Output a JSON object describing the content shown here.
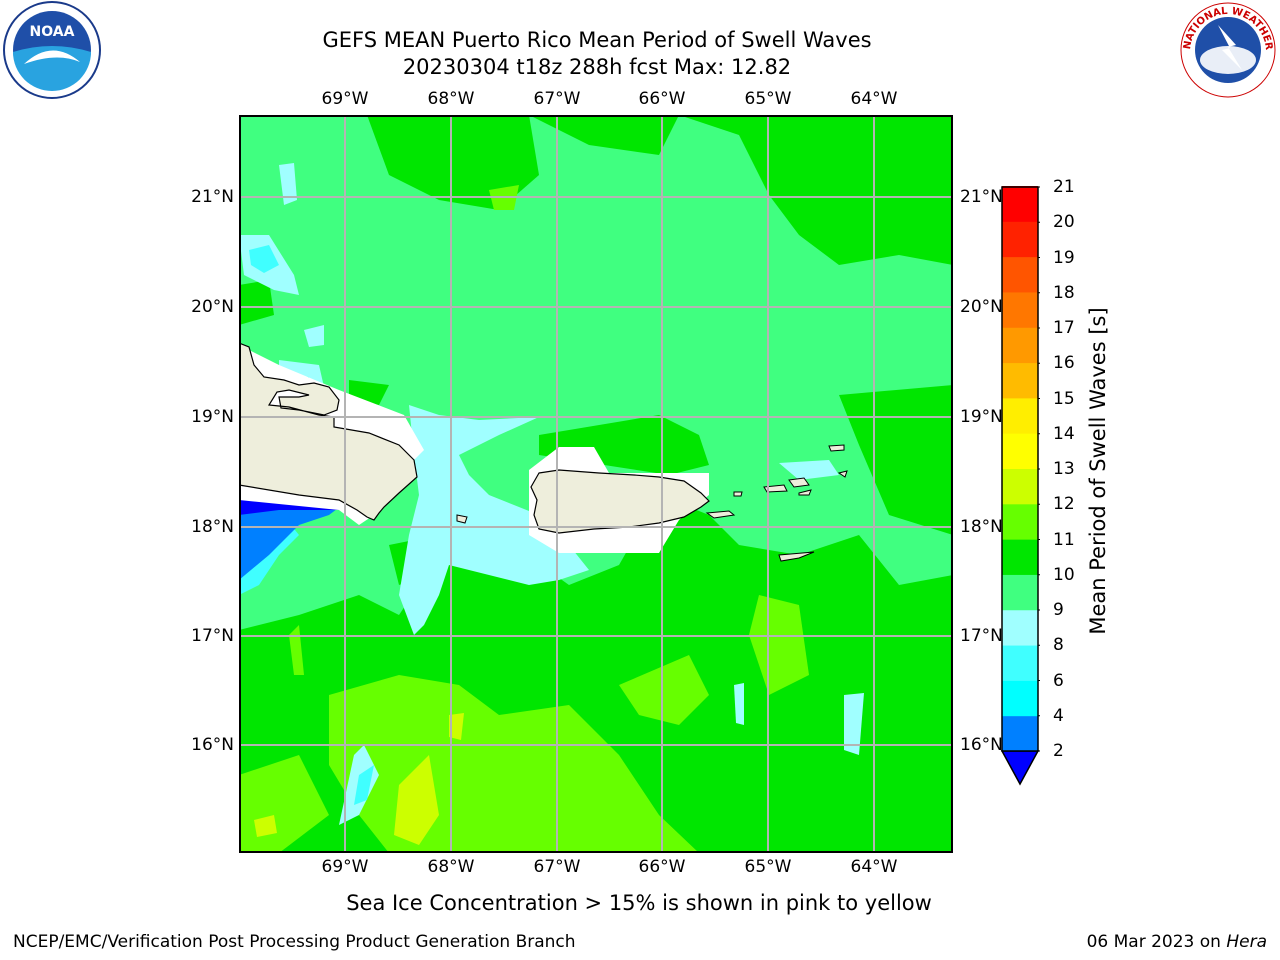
{
  "header": {
    "title_line1": "GEFS MEAN Puerto Rico Mean Period of Swell Waves",
    "title_line2": "20230304 t18z 288h fcst   Max: 12.82"
  },
  "axes": {
    "lon_labels": [
      "69°W",
      "68°W",
      "67°W",
      "66°W",
      "65°W",
      "64°W"
    ],
    "lat_labels": [
      "21°N",
      "20°N",
      "19°N",
      "18°N",
      "17°N",
      "16°N"
    ],
    "lon_values": [
      -69,
      -68,
      -67,
      -66,
      -65,
      -64
    ],
    "lat_values": [
      21,
      20,
      19,
      18,
      17,
      16
    ],
    "lon_range": [
      -69.99,
      -63.25
    ],
    "lat_range": [
      15.0,
      21.75
    ]
  },
  "colorbar": {
    "label": "Mean Period of Swell Waves [s]",
    "ticks": [
      "2",
      "4",
      "6",
      "8",
      "9",
      "10",
      "11",
      "12",
      "13",
      "14",
      "15",
      "16",
      "17",
      "18",
      "19",
      "20",
      "21"
    ],
    "colors": [
      "#0000ff",
      "#0080ff",
      "#00ffff",
      "#40ffff",
      "#a0ffff",
      "#40ff80",
      "#00e600",
      "#66ff00",
      "#ccff00",
      "#ffff00",
      "#ffee00",
      "#ffbb00",
      "#ff9900",
      "#ff7700",
      "#ff5500",
      "#ff2200",
      "#ff0000"
    ],
    "extend": "min"
  },
  "map_colors": {
    "land": "#eeeedc",
    "coast": "#000000",
    "grid": "#b4b4b4",
    "white_mask": "#ffffff"
  },
  "footer": {
    "note": "Sea Ice Concentration > 15% is shown in pink to yellow",
    "credit": "NCEP/EMC/Verification Post Processing Product Generation Branch",
    "date": "06 Mar 2023 on",
    "host": "Hera"
  },
  "logos": {
    "noaa_text": "NOAA",
    "nws_text": "NATIONAL WEATHER SERVICE"
  }
}
